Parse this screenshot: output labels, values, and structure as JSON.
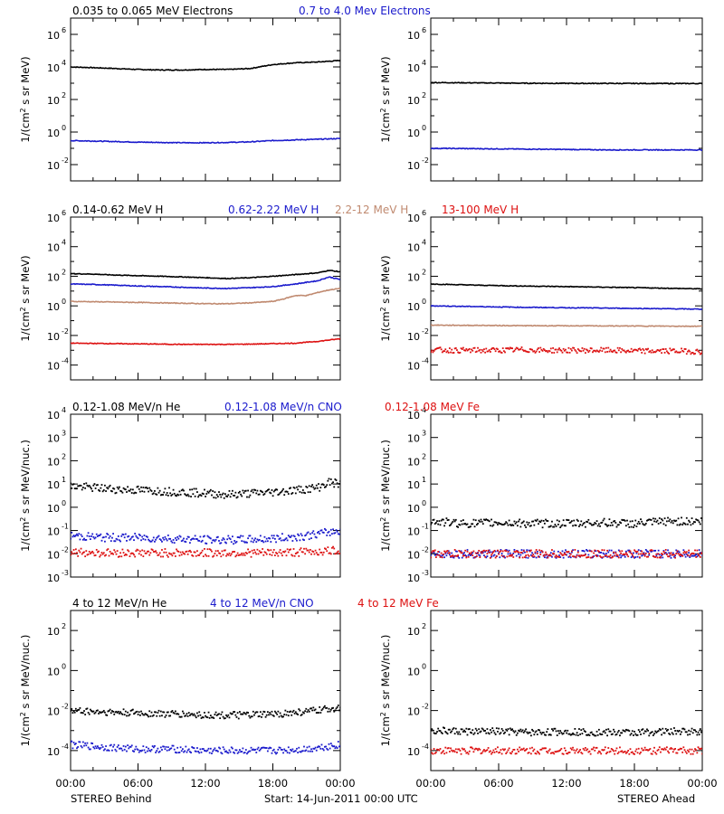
{
  "colors": {
    "black": "#000000",
    "blue": "#1a1acc",
    "tan": "#c08a70",
    "red": "#dd1111"
  },
  "rows": [
    {
      "titles": [
        {
          "text": "0.035 to 0.065 MeV Electrons",
          "color": "black"
        },
        {
          "text": "0.7 to 4.0 Mev Electrons",
          "color": "blue"
        }
      ]
    },
    {
      "titles": [
        {
          "text": "0.14-0.62 MeV H",
          "color": "black"
        },
        {
          "text": "0.62-2.22 MeV H",
          "color": "blue"
        },
        {
          "text": "2.2-12 MeV H",
          "color": "tan"
        },
        {
          "text": "13-100 MeV H",
          "color": "red"
        }
      ]
    },
    {
      "titles": [
        {
          "text": "0.12-1.08 MeV/n He",
          "color": "black"
        },
        {
          "text": "0.12-1.08 MeV/n CNO",
          "color": "blue"
        },
        {
          "text": "0.12-1.08 MeV Fe",
          "color": "red"
        }
      ]
    },
    {
      "titles": [
        {
          "text": "4 to 12 MeV/n He",
          "color": "black"
        },
        {
          "text": "4 to 12 MeV/n CNO",
          "color": "blue"
        },
        {
          "text": "4 to 12 MeV Fe",
          "color": "red"
        }
      ]
    }
  ],
  "footer": {
    "left": "STEREO Behind",
    "center": "Start: 14-Jun-2011 00:00 UTC",
    "right": "STEREO Ahead"
  },
  "chart_data": [
    {
      "id": "behind-electrons",
      "type": "line",
      "log_y": true,
      "ylim_exp": [
        -3,
        7
      ],
      "tick_exps": [
        -2,
        0,
        2,
        4,
        6
      ],
      "ylabel": [
        "1/(cm",
        "2",
        " s sr MeV)"
      ],
      "x_hours": [
        0,
        24
      ],
      "xticks": [
        "00:00",
        "06:00",
        "12:00",
        "18:00",
        "00:00"
      ],
      "show_xticks": false,
      "series": [
        {
          "color": "black",
          "style": "line",
          "x": [
            0,
            2,
            4,
            6,
            8,
            10,
            12,
            14,
            16,
            18,
            20,
            22,
            24
          ],
          "y": [
            10000,
            9000,
            8000,
            7000,
            6500,
            6500,
            7000,
            7000,
            8000,
            14000,
            18000,
            20000,
            25000
          ]
        },
        {
          "color": "blue",
          "style": "line",
          "x": [
            0,
            2,
            4,
            6,
            8,
            10,
            12,
            14,
            16,
            18,
            20,
            22,
            24
          ],
          "y": [
            0.3,
            0.28,
            0.26,
            0.24,
            0.23,
            0.22,
            0.22,
            0.23,
            0.25,
            0.3,
            0.33,
            0.36,
            0.4
          ]
        }
      ]
    },
    {
      "id": "ahead-electrons",
      "type": "line",
      "log_y": true,
      "ylim_exp": [
        -3,
        7
      ],
      "tick_exps": [
        -2,
        0,
        2,
        4,
        6
      ],
      "ylabel": [
        "1/(cm",
        "2",
        " s sr MeV)"
      ],
      "x_hours": [
        0,
        24
      ],
      "xticks": [
        "00:00",
        "06:00",
        "12:00",
        "18:00",
        "00:00"
      ],
      "show_xticks": false,
      "series": [
        {
          "color": "black",
          "style": "line",
          "x": [
            0,
            4,
            8,
            12,
            16,
            20,
            24
          ],
          "y": [
            1100,
            1050,
            1000,
            980,
            970,
            960,
            950
          ]
        },
        {
          "color": "blue",
          "style": "line",
          "x": [
            0,
            4,
            8,
            12,
            16,
            20,
            24
          ],
          "y": [
            0.1,
            0.095,
            0.09,
            0.085,
            0.08,
            0.08,
            0.08
          ]
        }
      ]
    },
    {
      "id": "behind-protons",
      "type": "line",
      "log_y": true,
      "ylim_exp": [
        -5,
        6
      ],
      "tick_exps": [
        -4,
        -2,
        0,
        2,
        4,
        6
      ],
      "ylabel": [
        "1/(cm",
        "2",
        " s sr MeV)"
      ],
      "x_hours": [
        0,
        24
      ],
      "xticks": [
        "00:00",
        "06:00",
        "12:00",
        "18:00",
        "00:00"
      ],
      "show_xticks": false,
      "series": [
        {
          "color": "black",
          "style": "line",
          "x": [
            0,
            2,
            4,
            6,
            8,
            10,
            12,
            14,
            16,
            18,
            20,
            22,
            23,
            24
          ],
          "y": [
            150,
            140,
            120,
            110,
            100,
            90,
            80,
            70,
            80,
            100,
            130,
            170,
            250,
            200
          ]
        },
        {
          "color": "blue",
          "style": "line",
          "x": [
            0,
            2,
            4,
            6,
            8,
            10,
            12,
            14,
            16,
            18,
            20,
            22,
            23,
            24
          ],
          "y": [
            30,
            28,
            25,
            22,
            20,
            18,
            16,
            15,
            17,
            20,
            30,
            50,
            90,
            60
          ]
        },
        {
          "color": "tan",
          "style": "line",
          "x": [
            0,
            2,
            4,
            6,
            8,
            10,
            12,
            14,
            16,
            18,
            19,
            20,
            21,
            22,
            23,
            24
          ],
          "y": [
            2,
            1.9,
            1.8,
            1.7,
            1.6,
            1.5,
            1.4,
            1.4,
            1.6,
            2,
            3,
            5,
            5,
            8,
            12,
            15
          ]
        },
        {
          "color": "red",
          "style": "line",
          "x": [
            0,
            2,
            4,
            6,
            8,
            10,
            12,
            14,
            16,
            18,
            20,
            22,
            24
          ],
          "y": [
            0.003,
            0.0029,
            0.0028,
            0.0027,
            0.0026,
            0.0025,
            0.0025,
            0.0025,
            0.0026,
            0.0028,
            0.003,
            0.004,
            0.006
          ]
        }
      ]
    },
    {
      "id": "ahead-protons",
      "type": "line",
      "log_y": true,
      "ylim_exp": [
        -5,
        6
      ],
      "tick_exps": [
        -4,
        -2,
        0,
        2,
        4,
        6
      ],
      "ylabel": [
        "1/(cm",
        "2",
        " s sr MeV)"
      ],
      "x_hours": [
        0,
        24
      ],
      "xticks": [
        "00:00",
        "06:00",
        "12:00",
        "18:00",
        "00:00"
      ],
      "show_xticks": false,
      "series": [
        {
          "color": "black",
          "style": "line",
          "x": [
            0,
            4,
            8,
            12,
            16,
            20,
            24
          ],
          "y": [
            30,
            25,
            22,
            20,
            18,
            16,
            14
          ]
        },
        {
          "color": "blue",
          "style": "line",
          "x": [
            0,
            4,
            8,
            12,
            16,
            20,
            24
          ],
          "y": [
            1,
            0.9,
            0.8,
            0.75,
            0.7,
            0.65,
            0.6
          ]
        },
        {
          "color": "tan",
          "style": "line",
          "x": [
            0,
            4,
            8,
            12,
            16,
            20,
            24
          ],
          "y": [
            0.05,
            0.048,
            0.046,
            0.045,
            0.044,
            0.043,
            0.042
          ]
        },
        {
          "color": "red",
          "style": "points",
          "x": [
            0,
            2,
            4,
            6,
            8,
            10,
            12,
            14,
            16,
            18,
            20,
            22,
            24
          ],
          "y": [
            0.0011,
            0.001,
            0.001,
            0.001,
            0.0011,
            0.001,
            0.001,
            0.001,
            0.001,
            0.0009,
            0.0009,
            0.0009,
            0.0008
          ]
        }
      ]
    },
    {
      "id": "behind-heavy-low",
      "type": "scatter",
      "log_y": true,
      "ylim_exp": [
        -3,
        4
      ],
      "tick_exps": [
        -3,
        -2,
        -1,
        0,
        1,
        2,
        3,
        4
      ],
      "ylabel": [
        "1/(cm",
        "2",
        " s sr MeV/nuc.)"
      ],
      "x_hours": [
        0,
        24
      ],
      "xticks": [
        "00:00",
        "06:00",
        "12:00",
        "18:00",
        "00:00"
      ],
      "show_xticks": false,
      "series": [
        {
          "color": "black",
          "style": "points",
          "x": [
            0,
            2,
            4,
            6,
            8,
            10,
            12,
            14,
            16,
            18,
            20,
            22,
            23,
            24
          ],
          "y": [
            8,
            7,
            6,
            5.5,
            5,
            4.5,
            4,
            3.5,
            4,
            4.5,
            5.5,
            7,
            12,
            10
          ]
        },
        {
          "color": "blue",
          "style": "points",
          "x": [
            0,
            3,
            6,
            9,
            12,
            15,
            18,
            21,
            24
          ],
          "y": [
            0.06,
            0.05,
            0.05,
            0.045,
            0.04,
            0.04,
            0.045,
            0.06,
            0.1
          ]
        },
        {
          "color": "red",
          "style": "points",
          "x": [
            0,
            3,
            6,
            9,
            12,
            15,
            18,
            21,
            24
          ],
          "y": [
            0.012,
            0.011,
            0.011,
            0.011,
            0.011,
            0.011,
            0.011,
            0.012,
            0.014
          ]
        }
      ]
    },
    {
      "id": "ahead-heavy-low",
      "type": "scatter",
      "log_y": true,
      "ylim_exp": [
        -3,
        4
      ],
      "tick_exps": [
        -3,
        -2,
        -1,
        0,
        1,
        2,
        3,
        4
      ],
      "ylabel": [
        "1/(cm",
        "2",
        " s sr MeV/nuc.)"
      ],
      "x_hours": [
        0,
        24
      ],
      "xticks": [
        "00:00",
        "06:00",
        "12:00",
        "18:00",
        "00:00"
      ],
      "show_xticks": false,
      "series": [
        {
          "color": "black",
          "style": "points",
          "x": [
            0,
            3,
            6,
            9,
            12,
            15,
            18,
            21,
            24
          ],
          "y": [
            0.25,
            0.2,
            0.22,
            0.2,
            0.2,
            0.22,
            0.2,
            0.25,
            0.25
          ]
        },
        {
          "color": "blue",
          "style": "points",
          "x": [
            0,
            4,
            8,
            12,
            16,
            20,
            24
          ],
          "y": [
            0.01,
            0.01,
            0.01,
            0.01,
            0.01,
            0.01,
            0.01
          ]
        },
        {
          "color": "red",
          "style": "points",
          "x": [
            0,
            4,
            8,
            12,
            16,
            20,
            24
          ],
          "y": [
            0.01,
            0.01,
            0.01,
            0.01,
            0.01,
            0.01,
            0.01
          ]
        }
      ]
    },
    {
      "id": "behind-heavy-high",
      "type": "scatter",
      "log_y": true,
      "ylim_exp": [
        -5,
        3
      ],
      "tick_exps": [
        -4,
        -2,
        0,
        2
      ],
      "ylabel": [
        "1/(cm",
        "2",
        " s sr MeV/nuc.)"
      ],
      "x_hours": [
        0,
        24
      ],
      "xticks": [
        "00:00",
        "06:00",
        "12:00",
        "18:00",
        "00:00"
      ],
      "show_xticks": true,
      "series": [
        {
          "color": "black",
          "style": "points",
          "x": [
            0,
            2,
            4,
            6,
            8,
            10,
            12,
            14,
            16,
            18,
            20,
            22,
            24
          ],
          "y": [
            0.01,
            0.009,
            0.008,
            0.0075,
            0.007,
            0.0065,
            0.006,
            0.0058,
            0.006,
            0.0065,
            0.008,
            0.01,
            0.015
          ]
        },
        {
          "color": "blue",
          "style": "points",
          "x": [
            0,
            3,
            6,
            9,
            12,
            15,
            18,
            21,
            24
          ],
          "y": [
            0.0002,
            0.00015,
            0.00012,
            0.00012,
            0.0001,
            0.0001,
            0.0001,
            0.00012,
            0.0002
          ]
        }
      ]
    },
    {
      "id": "ahead-heavy-high",
      "type": "scatter",
      "log_y": true,
      "ylim_exp": [
        -5,
        3
      ],
      "tick_exps": [
        -4,
        -2,
        0,
        2
      ],
      "ylabel": [
        "1/(cm",
        "2",
        " s sr MeV/nuc.)"
      ],
      "x_hours": [
        0,
        24
      ],
      "xticks": [
        "00:00",
        "06:00",
        "12:00",
        "18:00",
        "00:00"
      ],
      "show_xticks": true,
      "series": [
        {
          "color": "black",
          "style": "points",
          "x": [
            0,
            3,
            6,
            9,
            12,
            15,
            18,
            21,
            24
          ],
          "y": [
            0.001,
            0.0009,
            0.0009,
            0.0008,
            0.0009,
            0.0008,
            0.0008,
            0.0009,
            0.0009
          ]
        },
        {
          "color": "red",
          "style": "points",
          "x": [
            2,
            6,
            10,
            14,
            18,
            22
          ],
          "y": [
            0.0001,
            0.0001,
            0.0001,
            0.0001,
            0.0001,
            0.0001
          ]
        }
      ]
    }
  ]
}
